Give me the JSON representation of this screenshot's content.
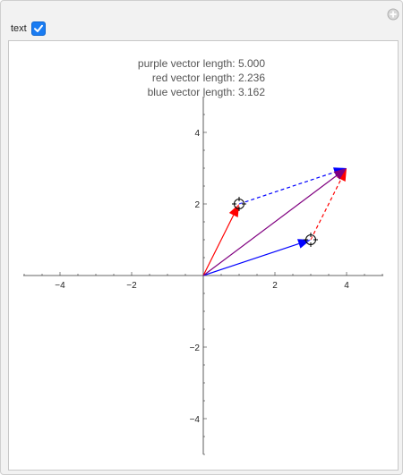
{
  "controls": {
    "text_label": "text",
    "text_checked": true
  },
  "overlay_text": {
    "purple": "purple vector length: 5.000",
    "red": "red vector length: 2.236",
    "blue": "blue vector length: 3.162"
  },
  "chart_data": {
    "type": "vector-plot",
    "xlim": [
      -5,
      5
    ],
    "ylim": [
      -5,
      5
    ],
    "x_ticks": [
      "-4",
      "-2",
      "2",
      "4"
    ],
    "y_ticks": [
      "4",
      "2",
      "-2",
      "-4"
    ],
    "vectors": [
      {
        "name": "red",
        "color": "#ff0000",
        "from": [
          0,
          0
        ],
        "to": [
          1,
          2
        ]
      },
      {
        "name": "blue",
        "color": "#0000ff",
        "from": [
          0,
          0
        ],
        "to": [
          3,
          1
        ]
      },
      {
        "name": "purple",
        "color": "#800080",
        "from": [
          0,
          0
        ],
        "to": [
          4,
          3
        ]
      }
    ],
    "dashed_vectors": [
      {
        "color": "#0000ff",
        "from": [
          1,
          2
        ],
        "to": [
          4,
          3
        ]
      },
      {
        "color": "#ff0000",
        "from": [
          3,
          1
        ],
        "to": [
          4,
          3
        ]
      }
    ],
    "locators": [
      [
        1,
        2
      ],
      [
        3,
        1
      ]
    ]
  }
}
